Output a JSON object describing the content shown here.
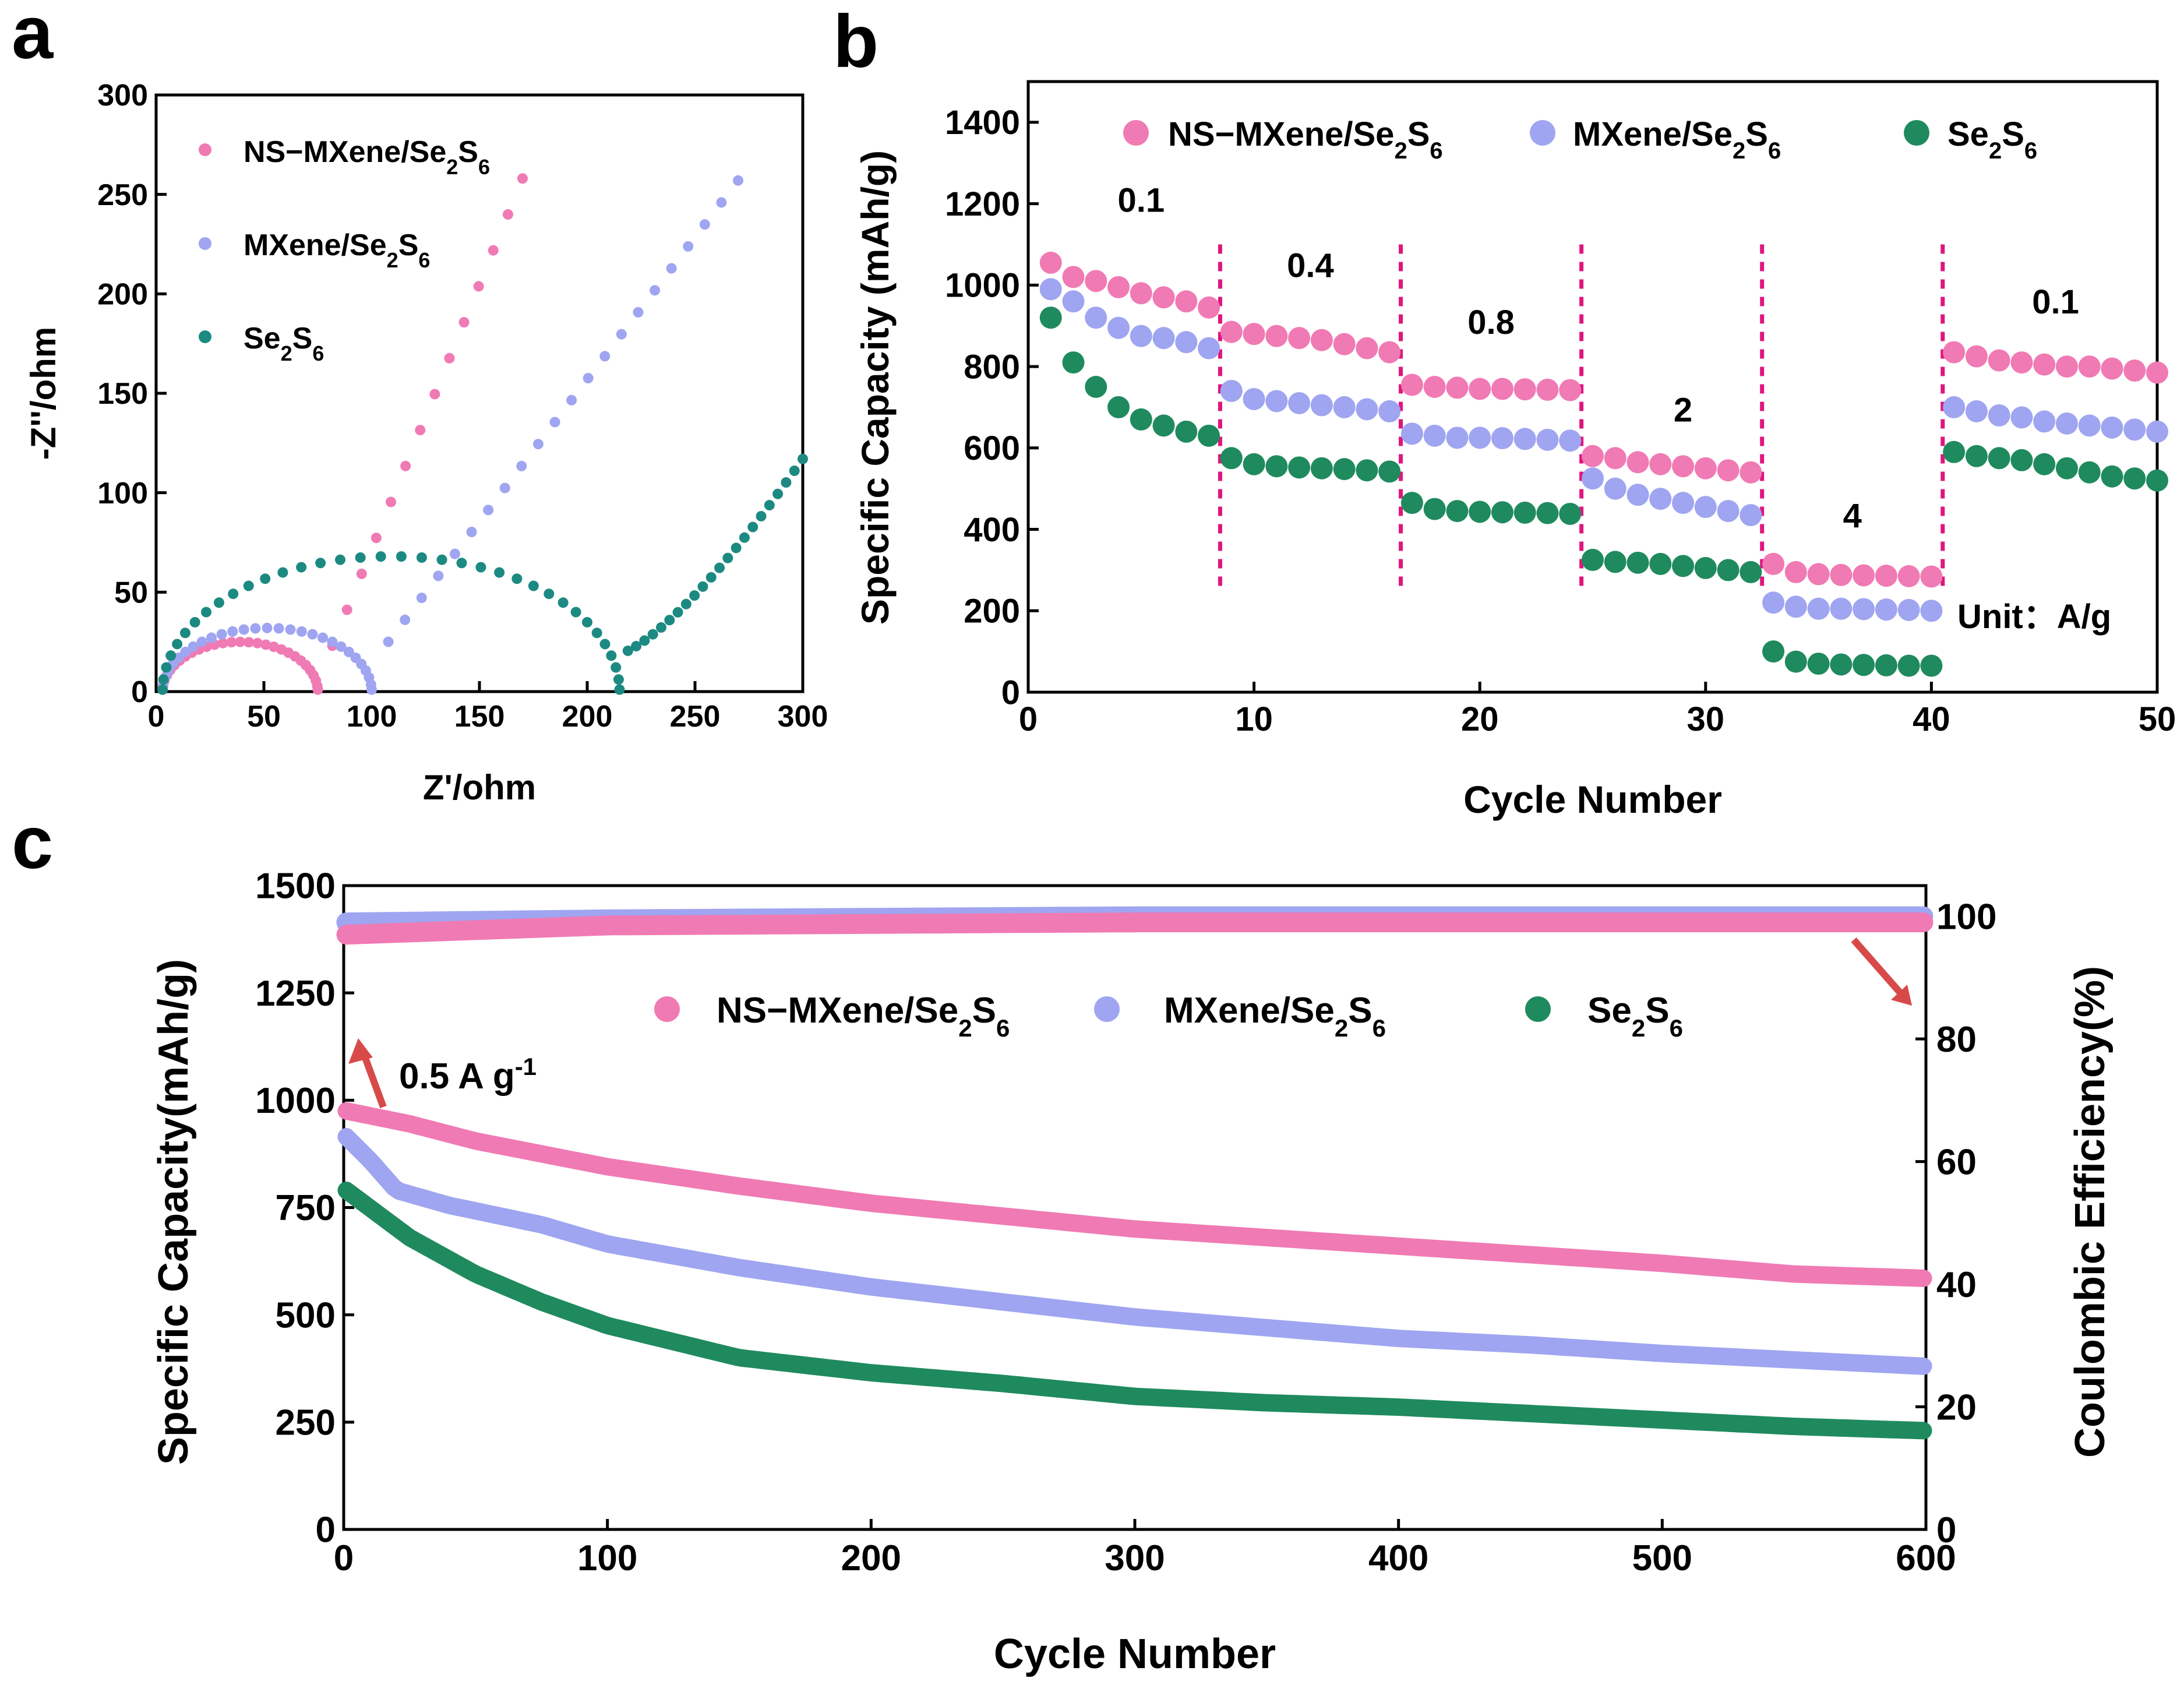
{
  "colors": {
    "pink": "#f07ab4",
    "blue": "#9fa5f0",
    "teal": "#1c8a82",
    "green": "#1f8a5e",
    "red": "#d84a4a",
    "magenta": "#e0157f",
    "axis": "#000000"
  },
  "legend_text": {
    "ns_prefix": "NS−MXene/Se",
    "mx_prefix": "MXene/Se",
    "se_prefix": "Se",
    "sub2": "2",
    "s": "S",
    "sub6": "6"
  },
  "chart_data": [
    {
      "panel": "a",
      "panel_label": "a",
      "type": "scatter",
      "title": "",
      "xlabel": "Z'/ohm",
      "ylabel": "-Z''/ohm",
      "xlim": [
        0,
        300
      ],
      "ylim": [
        0,
        300
      ],
      "xticks": [
        0,
        50,
        100,
        150,
        200,
        250,
        300
      ],
      "yticks": [
        0,
        50,
        100,
        150,
        200,
        250,
        300
      ],
      "series": [
        {
          "name": "NS-MXene/Se2S6",
          "color": "pink",
          "semicircle": {
            "r0": 3,
            "r1": 75,
            "peak": 25
          },
          "tail": {
            "x0": 75,
            "y0": 5,
            "x1": 170,
            "y1": 258,
            "n": 14
          }
        },
        {
          "name": "MXene/Se2S6",
          "color": "blue",
          "semicircle": {
            "r0": 3,
            "r1": 100,
            "peak": 32
          },
          "tail": {
            "x0": 100,
            "y0": 14,
            "x1": 270,
            "y1": 257,
            "n": 22
          }
        },
        {
          "name": "Se2S6",
          "color": "teal",
          "semicircle": {
            "r0": 3,
            "r1": 215,
            "peak": 68
          },
          "tail": {
            "x0": 215,
            "y0": 19,
            "x1": 300,
            "y1": 117,
            "n": 22
          }
        }
      ]
    },
    {
      "panel": "b",
      "panel_label": "b",
      "type": "scatter",
      "title": "",
      "xlabel": "Cycle Number",
      "ylabel": "Specific Capacity (mAh/g)",
      "xlim": [
        0,
        50
      ],
      "ylim": [
        0,
        1500
      ],
      "xticks": [
        0,
        10,
        20,
        30,
        40,
        50
      ],
      "yticks": [
        0,
        200,
        400,
        600,
        800,
        1000,
        1200,
        1400
      ],
      "rate_labels": [
        {
          "text": "0.1",
          "x": 5,
          "y": 1180
        },
        {
          "text": "0.4",
          "x": 12.5,
          "y": 1020
        },
        {
          "text": "0.8",
          "x": 20.5,
          "y": 880
        },
        {
          "text": "2",
          "x": 29,
          "y": 665
        },
        {
          "text": "4",
          "x": 36.5,
          "y": 405
        },
        {
          "text": "0.1",
          "x": 45.5,
          "y": 930
        }
      ],
      "unit_note": "Unit：A/g",
      "boundaries": [
        8.5,
        16.5,
        24.5,
        32.5,
        40.5
      ],
      "x": [
        1,
        2,
        3,
        4,
        5,
        6,
        7,
        8,
        9,
        10,
        11,
        12,
        13,
        14,
        15,
        16,
        17,
        18,
        19,
        20,
        21,
        22,
        23,
        24,
        25,
        26,
        27,
        28,
        29,
        30,
        31,
        32,
        33,
        34,
        35,
        36,
        37,
        38,
        39,
        40,
        41,
        42,
        43,
        44,
        45,
        46,
        47,
        48,
        49,
        50
      ],
      "series": [
        {
          "name": "NS-MXene/Se2S6",
          "color": "pink",
          "values": [
            1055,
            1020,
            1010,
            995,
            980,
            970,
            960,
            945,
            885,
            880,
            875,
            870,
            865,
            855,
            845,
            835,
            755,
            750,
            748,
            745,
            745,
            744,
            743,
            742,
            580,
            575,
            565,
            560,
            555,
            550,
            545,
            540,
            315,
            295,
            290,
            288,
            287,
            286,
            285,
            284,
            835,
            825,
            815,
            810,
            805,
            800,
            800,
            795,
            790,
            785
          ]
        },
        {
          "name": "MXene/Se2S6",
          "color": "blue",
          "values": [
            990,
            960,
            920,
            895,
            875,
            870,
            860,
            845,
            740,
            720,
            715,
            710,
            705,
            700,
            695,
            690,
            635,
            630,
            625,
            625,
            624,
            622,
            620,
            618,
            525,
            500,
            485,
            475,
            465,
            455,
            445,
            435,
            220,
            210,
            205,
            205,
            204,
            203,
            202,
            200,
            700,
            690,
            680,
            675,
            665,
            660,
            655,
            650,
            645,
            640
          ]
        },
        {
          "name": "Se2S6",
          "color": "green",
          "values": [
            920,
            810,
            750,
            700,
            670,
            655,
            640,
            630,
            575,
            560,
            555,
            552,
            550,
            548,
            545,
            542,
            465,
            450,
            445,
            443,
            442,
            441,
            440,
            438,
            325,
            320,
            318,
            315,
            310,
            305,
            300,
            295,
            100,
            75,
            70,
            68,
            67,
            66,
            65,
            65,
            590,
            580,
            575,
            570,
            560,
            550,
            540,
            530,
            525,
            520
          ]
        }
      ]
    },
    {
      "panel": "c",
      "panel_label": "c",
      "type": "scatter",
      "title": "",
      "xlabel": "Cycle Number",
      "ylabel": "Specific Capacity(mAh/g)",
      "y2label": "Coulombic Efficiency(%)",
      "xlim": [
        0,
        600
      ],
      "ylim": [
        0,
        1500
      ],
      "y2lim": [
        0,
        105
      ],
      "xticks": [
        0,
        100,
        200,
        300,
        400,
        500,
        600
      ],
      "yticks": [
        0,
        250,
        500,
        750,
        1000,
        1250,
        1500
      ],
      "y2ticks": [
        0,
        20,
        40,
        60,
        80,
        100
      ],
      "annotation": {
        "text": "0.5 A g",
        "superscript": "-1"
      },
      "series": [
        {
          "name": "NS-MXene/Se2S6",
          "color": "pink",
          "axis": "left",
          "points": [
            [
              1,
              975
            ],
            [
              25,
              945
            ],
            [
              50,
              905
            ],
            [
              75,
              875
            ],
            [
              100,
              845
            ],
            [
              150,
              800
            ],
            [
              200,
              760
            ],
            [
              250,
              730
            ],
            [
              300,
              700
            ],
            [
              350,
              680
            ],
            [
              400,
              660
            ],
            [
              450,
              640
            ],
            [
              500,
              620
            ],
            [
              550,
              595
            ],
            [
              600,
              585
            ]
          ]
        },
        {
          "name": "MXene/Se2S6",
          "color": "blue",
          "axis": "left",
          "points": [
            [
              1,
              915
            ],
            [
              10,
              860
            ],
            [
              20,
              790
            ],
            [
              40,
              755
            ],
            [
              75,
              710
            ],
            [
              100,
              665
            ],
            [
              150,
              610
            ],
            [
              200,
              565
            ],
            [
              250,
              530
            ],
            [
              300,
              495
            ],
            [
              350,
              470
            ],
            [
              400,
              445
            ],
            [
              450,
              430
            ],
            [
              500,
              410
            ],
            [
              550,
              395
            ],
            [
              600,
              380
            ]
          ]
        },
        {
          "name": "Se2S6",
          "color": "green",
          "axis": "left",
          "points": [
            [
              1,
              790
            ],
            [
              25,
              680
            ],
            [
              50,
              595
            ],
            [
              75,
              530
            ],
            [
              100,
              475
            ],
            [
              150,
              400
            ],
            [
              200,
              365
            ],
            [
              250,
              340
            ],
            [
              300,
              310
            ],
            [
              350,
              295
            ],
            [
              400,
              285
            ],
            [
              450,
              270
            ],
            [
              500,
              255
            ],
            [
              550,
              240
            ],
            [
              600,
              230
            ]
          ]
        },
        {
          "name": "NS-MXene/Se2S6 CE",
          "color": "pink",
          "axis": "right",
          "points": [
            [
              1,
              97
            ],
            [
              100,
              98.5
            ],
            [
              300,
              99
            ],
            [
              600,
              99
            ]
          ]
        },
        {
          "name": "MXene/Se2S6 CE",
          "color": "blue",
          "axis": "right",
          "points": [
            [
              1,
              99
            ],
            [
              100,
              99.5
            ],
            [
              300,
              100
            ],
            [
              600,
              100
            ]
          ]
        }
      ]
    }
  ]
}
